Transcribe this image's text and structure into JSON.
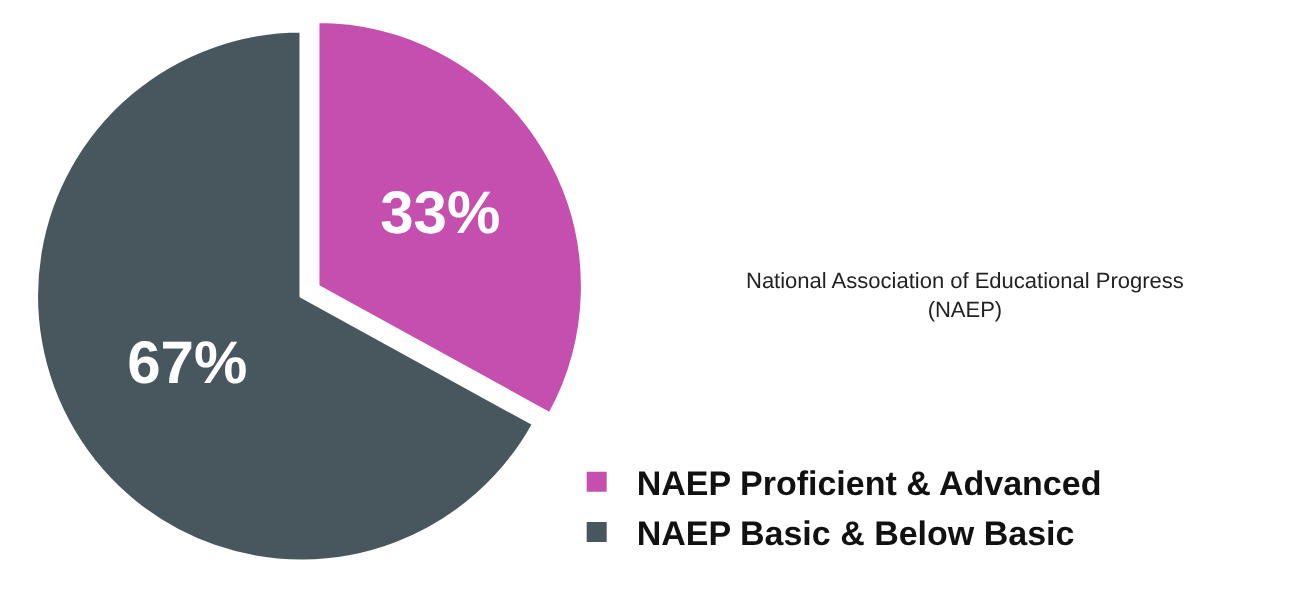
{
  "chart_data": {
    "type": "pie",
    "categories": [
      "NAEP Proficient & Advanced",
      "NAEP Basic & Below Basic"
    ],
    "values": [
      33,
      67
    ],
    "colors": [
      "#c54fae",
      "#48565d"
    ],
    "value_labels": [
      "33%",
      "67%"
    ],
    "legend": "bottom right",
    "annotations": [
      "National Association of Educational Progress\n(NAEP)"
    ]
  }
}
